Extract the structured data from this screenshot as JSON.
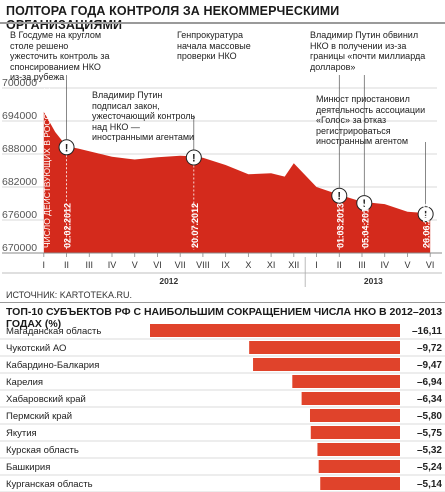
{
  "title": "ПОЛТОРА ГОДА КОНТРОЛЯ ЗА НЕКОММЕРЧЕСКИМИ ОРГАНИЗАЦИЯМИ",
  "source": "ИСТОЧНИК: KARTOTEKA.RU.",
  "annotations": [
    "В Госдуме на круглом столе решено ужесточить контроль за спонсированием НКО из-за рубежа",
    "Владимир Путин подписал закон, ужесточающий контроль над НКО — иностранными агентами",
    "Генпрокуратура начала массовые проверки НКО",
    "Владимир Путин обвинил НКО в получении из-за границы «почти миллиарда долларов»",
    "Минюст приостановил деятельность ассоциации «Голос» за отказ регистрироваться иностранным агентом"
  ],
  "colors": {
    "accent": "#d42a1c",
    "bar": "#e0432b",
    "grid": "#cccccc",
    "text": "#222222"
  },
  "chart_data": [
    {
      "type": "area",
      "title": "ПОЛТОРА ГОДА КОНТРОЛЯ ЗА НЕКОММЕРЧЕСКИМИ ОРГАНИЗАЦИЯМИ",
      "ylabel": "ЧИСЛО ДЕЙСТВУЮЩИХ В РОССИИ НКО",
      "ylim": [
        670000,
        700000
      ],
      "yticks": [
        "700000",
        "694000",
        "688000",
        "682000",
        "676000",
        "670000"
      ],
      "month_labels": [
        "I",
        "II",
        "III",
        "IV",
        "V",
        "VI",
        "VII",
        "VIII",
        "IX",
        "X",
        "XI",
        "XII",
        "I",
        "II",
        "III",
        "IV",
        "V",
        "VI"
      ],
      "years": [
        "2012",
        "2013"
      ],
      "x": [
        0,
        0.5,
        1.0,
        1.5,
        2,
        3,
        4,
        5,
        6,
        6.5,
        7,
        8,
        9,
        10,
        10.6,
        11,
        12,
        13,
        14,
        15,
        16,
        17
      ],
      "y": [
        695700,
        692000,
        689400,
        689000,
        688500,
        687500,
        687000,
        687400,
        687700,
        687600,
        687300,
        686000,
        684300,
        684500,
        683900,
        686300,
        682000,
        680600,
        679300,
        678900,
        677500,
        677200
      ],
      "event_dates": [
        "02.02.2012",
        "20.07.2012",
        "01.03.2013",
        "05.04.2013",
        "26.06.2013"
      ],
      "event_x": [
        1.0,
        6.6,
        13.0,
        14.1,
        16.8
      ]
    },
    {
      "type": "bar",
      "title": "ТОП-10 СУБЪЕКТОВ РФ С НАИБОЛЬШИМ СОКРАЩЕНИЕМ ЧИСЛА НКО В 2012–2013 ГОДАХ (%)",
      "categories": [
        "Магаданская область",
        "Чукотский АО",
        "Кабардино-Балкария",
        "Карелия",
        "Хабаровский край",
        "Пермский край",
        "Якутия",
        "Курская область",
        "Башкирия",
        "Курганская область"
      ],
      "values": [
        -16.11,
        -9.72,
        -9.47,
        -6.94,
        -6.34,
        -5.8,
        -5.75,
        -5.32,
        -5.24,
        -5.14
      ],
      "value_labels": [
        "–16,11",
        "–9,72",
        "–9,47",
        "–6,94",
        "–6,34",
        "–5,80",
        "–5,75",
        "–5,32",
        "–5,24",
        "–5,14"
      ]
    }
  ]
}
